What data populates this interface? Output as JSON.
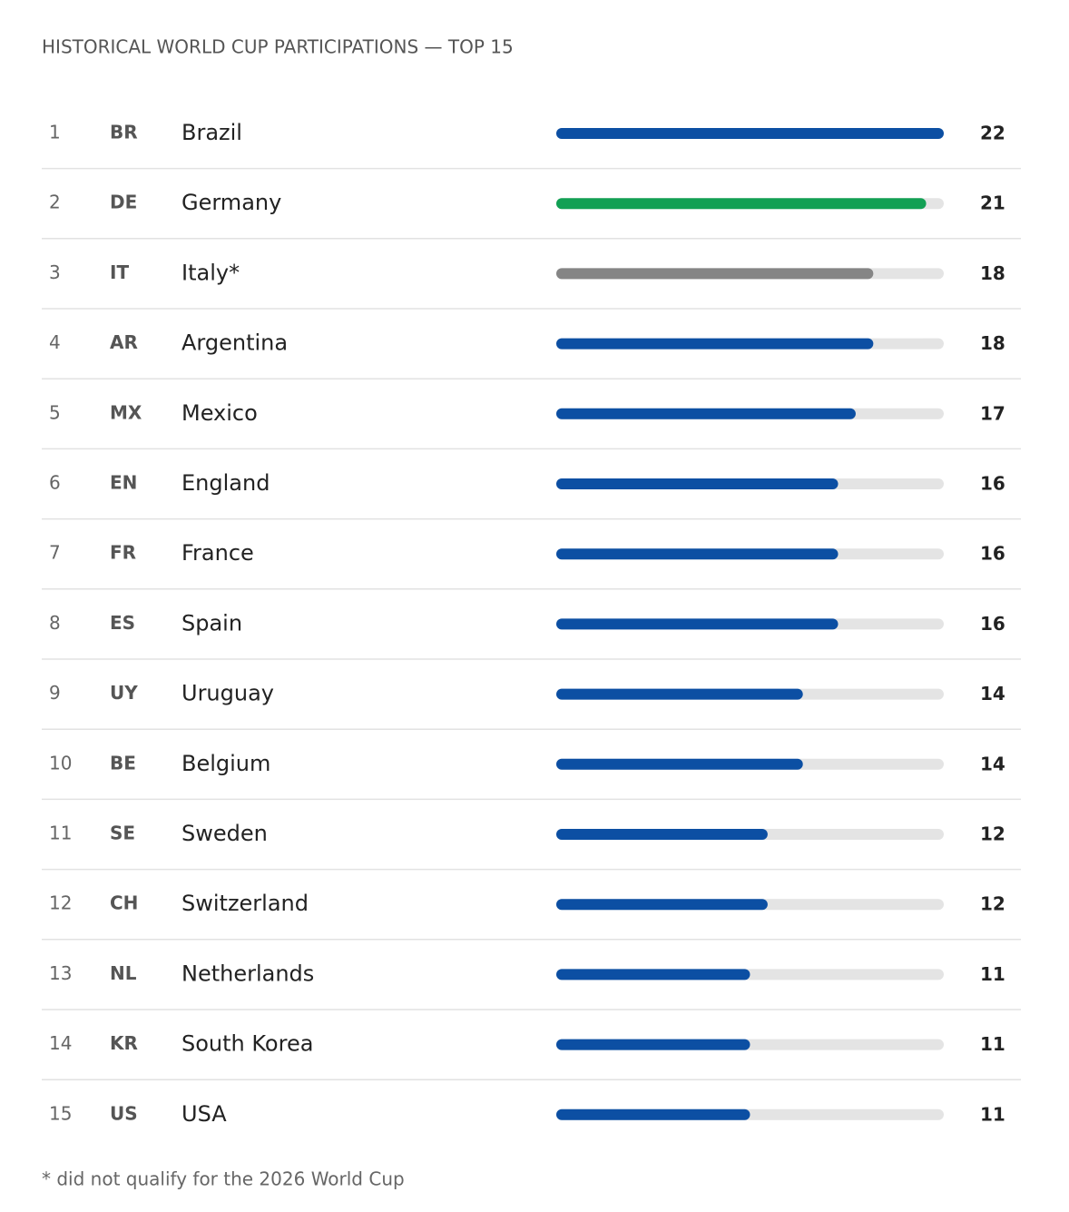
{
  "chart_data": {
    "type": "bar",
    "title": "HISTORICAL WORLD CUP PARTICIPATIONS — TOP 15",
    "ranks": [
      "1",
      "2",
      "3",
      "4",
      "5",
      "6",
      "7",
      "8",
      "9",
      "10",
      "11",
      "12",
      "13",
      "14",
      "15"
    ],
    "codes": [
      "BR",
      "DE",
      "IT",
      "AR",
      "MX",
      "EN",
      "FR",
      "ES",
      "UY",
      "BE",
      "SE",
      "CH",
      "NL",
      "KR",
      "US"
    ],
    "categories": [
      "Brazil",
      "Germany",
      "Italy*",
      "Argentina",
      "Mexico",
      "England",
      "France",
      "Spain",
      "Uruguay",
      "Belgium",
      "Sweden",
      "Switzerland",
      "Netherlands",
      "South Korea",
      "USA"
    ],
    "values": [
      22,
      21,
      18,
      18,
      17,
      16,
      16,
      16,
      14,
      14,
      12,
      12,
      11,
      11,
      11
    ],
    "colors": [
      "#0c4fa3",
      "#12a054",
      "#858585",
      "#0c4fa3",
      "#0c4fa3",
      "#0c4fa3",
      "#0c4fa3",
      "#0c4fa3",
      "#0c4fa3",
      "#0c4fa3",
      "#0c4fa3",
      "#0c4fa3",
      "#0c4fa3",
      "#0c4fa3",
      "#0c4fa3"
    ],
    "track_color": "#e4e4e4",
    "xlim": [
      0,
      22
    ],
    "footnote": "* did not qualify for the 2026 World Cup"
  }
}
